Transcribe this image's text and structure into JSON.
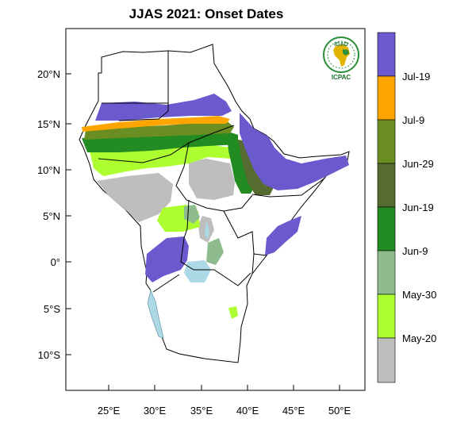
{
  "title": "JJAS 2021: Onset Dates",
  "logo": {
    "top_text": "IGAD",
    "bottom_text": "ICPAC",
    "colors": {
      "ring": "#2f8f3a",
      "africa": "#e0b400",
      "region": "#2f8f3a",
      "text": "#1a6f2a"
    }
  },
  "axes": {
    "lat_labels": [
      "20°N",
      "15°N",
      "10°N",
      "5°N",
      "0°",
      "5°S",
      "10°S"
    ],
    "lon_labels": [
      "25°E",
      "30°E",
      "35°E",
      "40°E",
      "45°E",
      "50°E"
    ]
  },
  "legend": {
    "colors": [
      "#6a5acd",
      "#ffa500",
      "#6b8e23",
      "#556b2f",
      "#228b22",
      "#8fbc8f",
      "#adff2f",
      "#bebebe"
    ],
    "labels": [
      "Jul-19",
      "Jul-9",
      "Jun-29",
      "Jun-19",
      "Jun-9",
      "May-30",
      "May-20"
    ]
  },
  "colors": {
    "lake": "#add8e6",
    "no_data": "#bebebe",
    "border": "#000000",
    "ocean": "#ffffff"
  }
}
